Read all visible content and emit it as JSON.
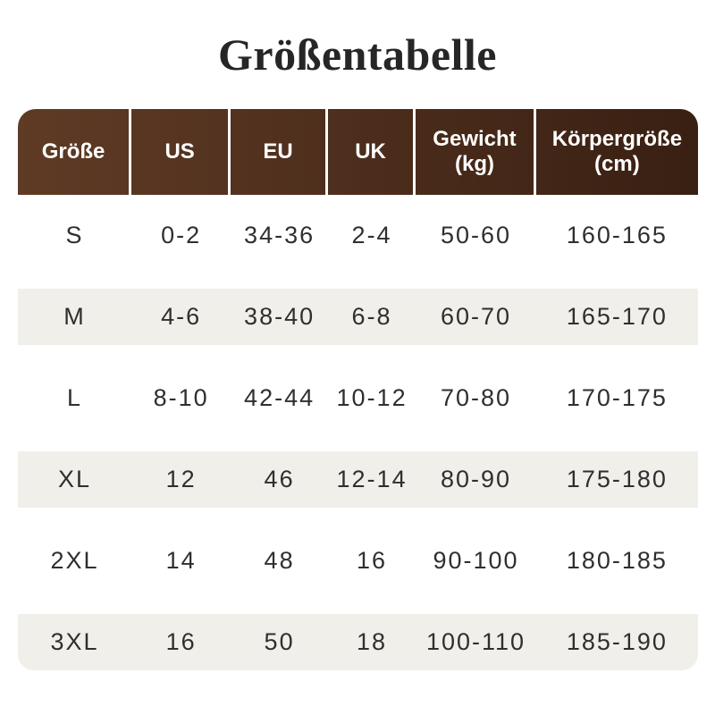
{
  "title": "Größentabelle",
  "table": {
    "columns": [
      {
        "label": "Größe"
      },
      {
        "label": "US"
      },
      {
        "label": "EU"
      },
      {
        "label": "UK"
      },
      {
        "label": "Gewicht",
        "sublabel": "(kg)"
      },
      {
        "label": "Körpergröße",
        "sublabel": "(cm)"
      }
    ],
    "rows": [
      {
        "size": "S",
        "us": "0-2",
        "eu": "34-36",
        "uk": "2-4",
        "weight_kg": "50-60",
        "height_cm": "160-165"
      },
      {
        "size": "M",
        "us": "4-6",
        "eu": "38-40",
        "uk": "6-8",
        "weight_kg": "60-70",
        "height_cm": "165-170"
      },
      {
        "size": "L",
        "us": "8-10",
        "eu": "42-44",
        "uk": "10-12",
        "weight_kg": "70-80",
        "height_cm": "170-175"
      },
      {
        "size": "XL",
        "us": "12",
        "eu": "46",
        "uk": "12-14",
        "weight_kg": "80-90",
        "height_cm": "175-180"
      },
      {
        "size": "2XL",
        "us": "14",
        "eu": "48",
        "uk": "16",
        "weight_kg": "90-100",
        "height_cm": "180-185"
      },
      {
        "size": "3XL",
        "us": "16",
        "eu": "50",
        "uk": "18",
        "weight_kg": "100-110",
        "height_cm": "185-190"
      }
    ],
    "colors": {
      "header_gradient_start": "#5f3b25",
      "header_gradient_end": "#392013",
      "header_text": "#ffffff",
      "stripe": "#f1efea",
      "body_text": "#2f2f2f",
      "title_text": "#262626"
    }
  }
}
